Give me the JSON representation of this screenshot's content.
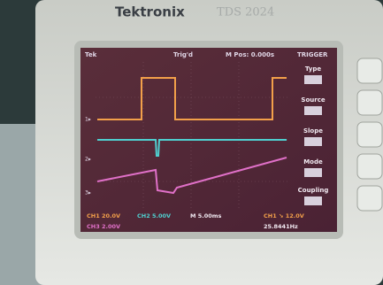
{
  "header": {
    "brand": "Tektronix",
    "model": "TDS 2024"
  },
  "screen": {
    "status": [
      "Tek",
      "Trig'd",
      "M Pos: 0.000s",
      "TRIGGER"
    ],
    "menu": [
      "Type",
      "Source",
      "Slope",
      "Mode",
      "Coupling"
    ],
    "readouts": [
      "CH1 20.0V",
      "CH2 5.00V",
      "M 5.00ms",
      "CH1 ↘ 12.0V",
      "CH3 2.00V",
      "25.8441Hz"
    ]
  }
}
